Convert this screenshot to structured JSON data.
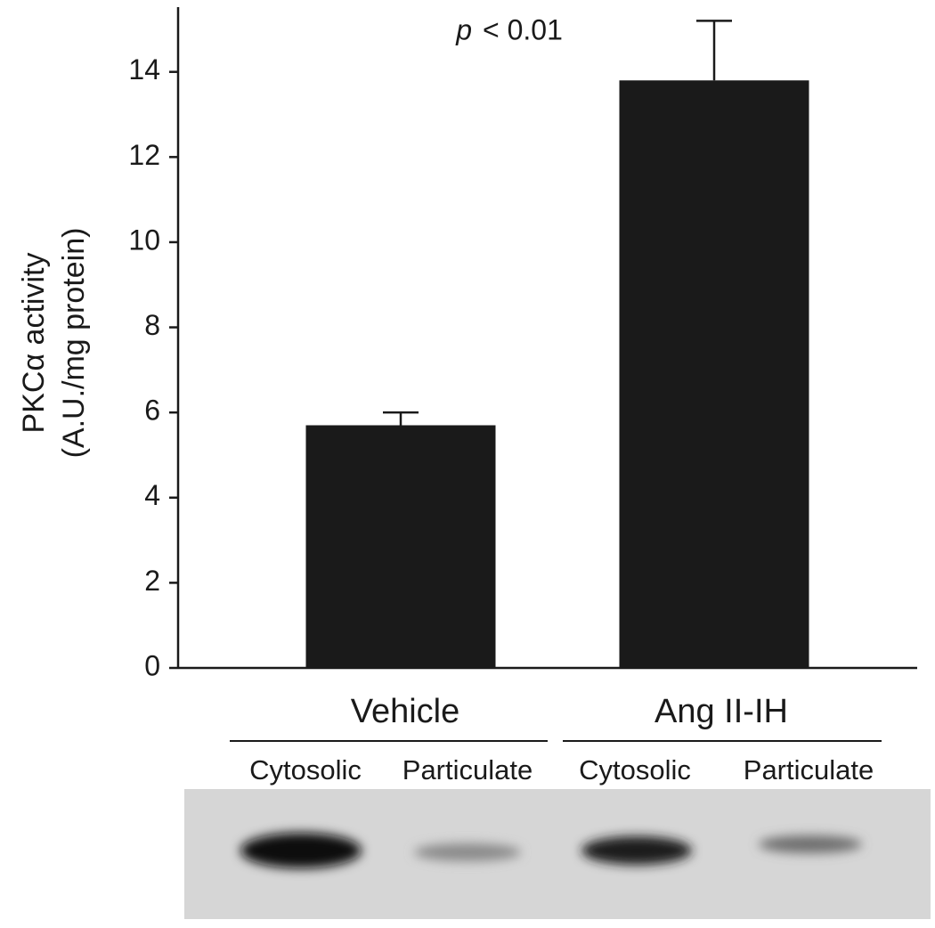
{
  "chart_data": {
    "type": "bar",
    "y_label": [
      "PKCα activity",
      "(A.U./mg protein)"
    ],
    "annotation": {
      "italic": "p",
      "text": "< 0.01"
    },
    "categories": [
      "Vehicle",
      "Ang II-IH"
    ],
    "values": [
      5.7,
      13.8
    ],
    "errors": [
      0.3,
      1.4
    ],
    "color": "#1a1a1a",
    "ylim": [
      0,
      15.5
    ],
    "yticks": [
      0,
      2,
      4,
      6,
      8,
      10,
      12,
      14
    ],
    "blot": {
      "lanes": [
        "Cytosolic",
        "Particulate",
        "Cytosolic",
        "Particulate"
      ]
    }
  }
}
